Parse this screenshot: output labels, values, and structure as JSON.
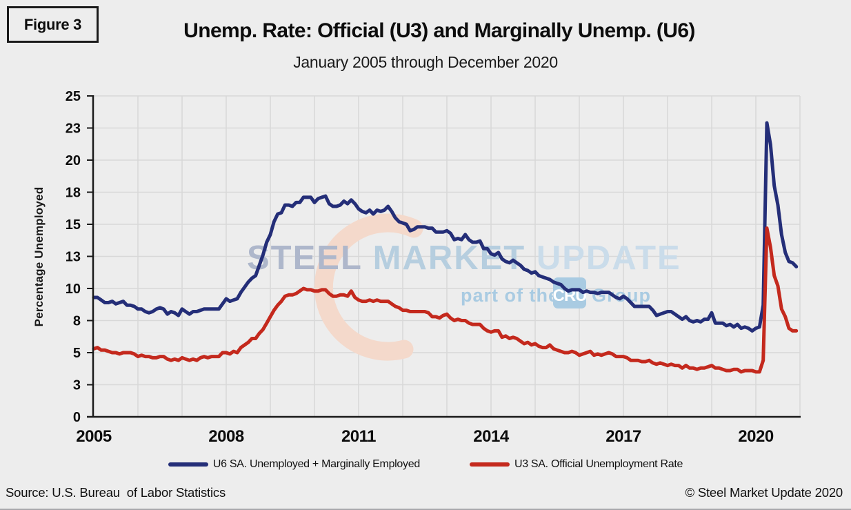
{
  "figure_label": "Figure 3",
  "title": "Unemp. Rate: Official (U3) and Marginally Unemp. (U6)",
  "subtitle": "January 2005 through December 2020",
  "source_note": "Source: U.S. Bureau  of Labor Statistics",
  "copyright": "© Steel Market Update 2020",
  "colors": {
    "background": "#ededed",
    "gridline": "#d8d8d8",
    "axis": "#1a1a1a",
    "u6_navy": "#242e78",
    "u3_red": "#c4291d"
  },
  "watermark": {
    "word1": "STEEL",
    "word2": "MARKET",
    "word3": "UPDATE",
    "tagline_prefix": "part of the",
    "badge": "CRU",
    "tagline_suffix": "Group",
    "word1_color": "#aeb7cb",
    "word2_color": "#b6cedf",
    "word3_color": "#cadcea",
    "tagline_color": "#a9cbe2",
    "swoosh_color": "#f4d9cb"
  },
  "chart_data": {
    "type": "line",
    "title": "Unemp. Rate: Official (U3) and Marginally Unemp. (U6)",
    "subtitle": "January 2005 through December 2020",
    "ylabel": "Percentage Unemployed",
    "ylim": [
      0,
      25
    ],
    "grid": true,
    "legend_position": "bottom",
    "x_start": "2005-01",
    "x_end": "2020-12",
    "x_tick_labels": [
      "2005",
      "2008",
      "2011",
      "2014",
      "2017",
      "2020"
    ],
    "x_tick_month_index": [
      0,
      36,
      72,
      108,
      144,
      180
    ],
    "y_ticks": [
      0,
      2.5,
      5,
      7.5,
      10,
      12.5,
      15,
      17.5,
      20,
      22.5,
      25
    ],
    "y_tick_labels": [
      "0",
      "3",
      "5",
      "8",
      "10",
      "13",
      "15",
      "18",
      "20",
      "23",
      "25"
    ],
    "series": [
      {
        "name": "U6 SA. Unemployed + Marginally Employed",
        "color": "#242e78",
        "values": [
          9.3,
          9.3,
          9.1,
          8.9,
          8.9,
          9.0,
          8.8,
          8.9,
          9.0,
          8.7,
          8.7,
          8.6,
          8.4,
          8.4,
          8.2,
          8.1,
          8.2,
          8.4,
          8.5,
          8.4,
          8.0,
          8.2,
          8.1,
          7.9,
          8.4,
          8.2,
          8.0,
          8.2,
          8.2,
          8.3,
          8.4,
          8.4,
          8.4,
          8.4,
          8.4,
          8.8,
          9.2,
          9.0,
          9.1,
          9.2,
          9.7,
          10.1,
          10.5,
          10.8,
          11.0,
          11.8,
          12.6,
          13.6,
          14.2,
          15.2,
          15.8,
          15.9,
          16.5,
          16.5,
          16.4,
          16.7,
          16.7,
          17.1,
          17.1,
          17.1,
          16.7,
          17.0,
          17.1,
          17.2,
          16.6,
          16.4,
          16.4,
          16.5,
          16.8,
          16.6,
          16.9,
          16.6,
          16.2,
          16.0,
          15.9,
          16.1,
          15.8,
          16.1,
          16.0,
          16.1,
          16.4,
          16.0,
          15.5,
          15.2,
          15.1,
          15.0,
          14.5,
          14.6,
          14.8,
          14.8,
          14.8,
          14.7,
          14.7,
          14.4,
          14.4,
          14.4,
          14.5,
          14.3,
          13.8,
          13.9,
          13.8,
          14.2,
          13.8,
          13.6,
          13.6,
          13.7,
          13.1,
          13.1,
          12.7,
          12.6,
          12.8,
          12.3,
          12.1,
          12.0,
          12.2,
          12.0,
          11.8,
          11.5,
          11.4,
          11.2,
          11.3,
          11.0,
          10.9,
          10.8,
          10.7,
          10.5,
          10.4,
          10.3,
          10.0,
          9.8,
          9.9,
          9.9,
          9.9,
          9.7,
          9.8,
          9.7,
          9.7,
          9.6,
          9.7,
          9.7,
          9.7,
          9.5,
          9.3,
          9.2,
          9.4,
          9.2,
          8.9,
          8.6,
          8.6,
          8.6,
          8.6,
          8.6,
          8.3,
          7.9,
          8.0,
          8.1,
          8.2,
          8.2,
          8.0,
          7.8,
          7.6,
          7.8,
          7.5,
          7.4,
          7.5,
          7.4,
          7.6,
          7.6,
          8.1,
          7.3,
          7.3,
          7.3,
          7.1,
          7.2,
          7.0,
          7.2,
          6.9,
          7.0,
          6.9,
          6.7,
          6.9,
          7.0,
          8.7,
          22.9,
          21.2,
          18.0,
          16.5,
          14.2,
          12.8,
          12.1,
          12.0,
          11.7
        ]
      },
      {
        "name": "U3 SA. Official Unemployment Rate",
        "color": "#c4291d",
        "values": [
          5.3,
          5.4,
          5.2,
          5.2,
          5.1,
          5.0,
          5.0,
          4.9,
          5.0,
          5.0,
          5.0,
          4.9,
          4.7,
          4.8,
          4.7,
          4.7,
          4.6,
          4.6,
          4.7,
          4.7,
          4.5,
          4.4,
          4.5,
          4.4,
          4.6,
          4.5,
          4.4,
          4.5,
          4.4,
          4.6,
          4.7,
          4.6,
          4.7,
          4.7,
          4.7,
          5.0,
          5.0,
          4.9,
          5.1,
          5.0,
          5.4,
          5.6,
          5.8,
          6.1,
          6.1,
          6.5,
          6.8,
          7.3,
          7.8,
          8.3,
          8.7,
          9.0,
          9.4,
          9.5,
          9.5,
          9.6,
          9.8,
          10.0,
          9.9,
          9.9,
          9.8,
          9.8,
          9.9,
          9.9,
          9.6,
          9.4,
          9.4,
          9.5,
          9.5,
          9.4,
          9.8,
          9.3,
          9.1,
          9.0,
          9.0,
          9.1,
          9.0,
          9.1,
          9.0,
          9.0,
          9.0,
          8.8,
          8.6,
          8.5,
          8.3,
          8.3,
          8.2,
          8.2,
          8.2,
          8.2,
          8.2,
          8.1,
          7.8,
          7.8,
          7.7,
          7.9,
          8.0,
          7.7,
          7.5,
          7.6,
          7.5,
          7.5,
          7.3,
          7.2,
          7.2,
          7.2,
          6.9,
          6.7,
          6.6,
          6.7,
          6.7,
          6.2,
          6.3,
          6.1,
          6.2,
          6.1,
          5.9,
          5.7,
          5.8,
          5.6,
          5.7,
          5.5,
          5.4,
          5.4,
          5.6,
          5.3,
          5.2,
          5.1,
          5.0,
          5.0,
          5.1,
          5.0,
          4.8,
          4.9,
          5.0,
          5.1,
          4.8,
          4.9,
          4.8,
          4.9,
          5.0,
          4.9,
          4.7,
          4.7,
          4.7,
          4.6,
          4.4,
          4.4,
          4.4,
          4.3,
          4.3,
          4.4,
          4.2,
          4.1,
          4.2,
          4.1,
          4.0,
          4.1,
          4.0,
          4.0,
          3.8,
          4.0,
          3.8,
          3.8,
          3.7,
          3.8,
          3.8,
          3.9,
          4.0,
          3.8,
          3.8,
          3.7,
          3.6,
          3.6,
          3.7,
          3.7,
          3.5,
          3.6,
          3.6,
          3.6,
          3.5,
          3.5,
          4.4,
          14.7,
          13.2,
          11.0,
          10.2,
          8.4,
          7.8,
          6.9,
          6.7,
          6.7
        ]
      }
    ]
  }
}
